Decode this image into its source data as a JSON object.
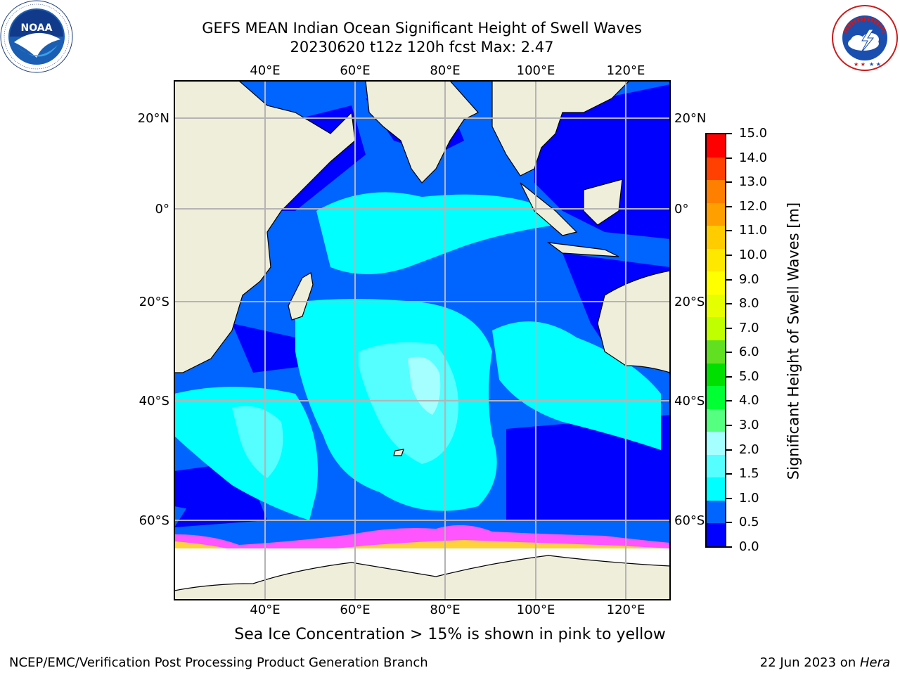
{
  "title": {
    "line1": "GEFS MEAN Indian Ocean Significant Height of Swell Waves",
    "line2": "20230620 t12z 120h fcst   Max: 2.47"
  },
  "logos": {
    "left": {
      "name": "noaa-logo",
      "text": "NOAA",
      "ring_text": "NATIONAL OCEANIC AND ATMOSPHERIC ADMINISTRATION · U.S. DEPARTMENT OF COMMERCE"
    },
    "right": {
      "name": "nws-logo",
      "ring_text": "NATIONAL WEATHER SERVICE"
    }
  },
  "map": {
    "region": "Indian Ocean",
    "lon_labels": [
      "40°E",
      "60°E",
      "80°E",
      "100°E",
      "120°E"
    ],
    "lat_labels": [
      "20°N",
      "0°",
      "20°S",
      "40°S",
      "60°S"
    ],
    "land_color": "#efeedb",
    "grid": true
  },
  "colorbar": {
    "label": "Significant Height of Swell Waves [m]",
    "ticks": [
      "15.0",
      "14.0",
      "13.0",
      "12.0",
      "11.0",
      "10.0",
      "9.0",
      "8.0",
      "7.0",
      "6.0",
      "5.0",
      "4.0",
      "3.0",
      "2.0",
      "1.5",
      "1.0",
      "0.5",
      "0.0"
    ],
    "colors_bottom_to_top": [
      "#0000ff",
      "#0064ff",
      "#00ffff",
      "#55ffff",
      "#a6ffff",
      "#55ff80",
      "#00ff33",
      "#00e000",
      "#60e020",
      "#c0ff00",
      "#e6ff00",
      "#ffff00",
      "#ffe800",
      "#ffcc00",
      "#ffa000",
      "#ff7f00",
      "#ff4000",
      "#ff0000"
    ]
  },
  "note": "Sea Ice Concentration > 15% is shown in pink to yellow",
  "footer": {
    "left": "NCEP/EMC/Verification Post Processing Product Generation Branch",
    "right_date": "22 Jun 2023 on ",
    "right_host": "Hera"
  }
}
